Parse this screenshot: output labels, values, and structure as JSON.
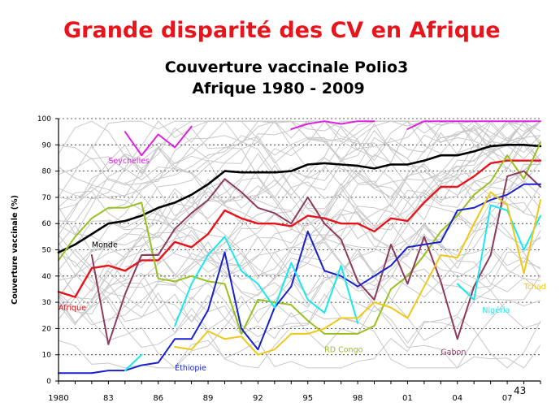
{
  "title": "Grande disparité des CV en Afrique",
  "subtitle_line1": "Couverture vaccinale Polio3",
  "subtitle_line2": "Afrique  1980 - 2009",
  "page_number": "43",
  "colors": {
    "title": "#e8141c",
    "background_lines": "#c8c8c8",
    "Monde": "#000000",
    "Afrique": "#e8141c",
    "Seychelles": "#e020e0",
    "RD Congo": "#99c01f",
    "Gabon": "#8e3a5e",
    "Éthiopie": "#1822c8",
    "Nigéria": "#18e8f0",
    "Tchad": "#f0c818"
  },
  "chart_data": {
    "type": "line",
    "title": "Couverture vaccinale Polio3 Afrique 1980 - 2009",
    "xlabel": "",
    "ylabel": "Couverture vaccinale (%)",
    "xlim": [
      1980,
      2009
    ],
    "ylim": [
      0,
      100
    ],
    "grid": "horizontal dashed",
    "x_tick_labels": [
      "1980",
      "83",
      "86",
      "89",
      "92",
      "95",
      "98",
      "01",
      "04",
      "07"
    ],
    "x_tick_values": [
      1980,
      1983,
      1986,
      1989,
      1992,
      1995,
      1998,
      2001,
      2004,
      2007
    ],
    "y_ticks": [
      0,
      10,
      20,
      30,
      40,
      50,
      60,
      70,
      80,
      90,
      100
    ],
    "x": [
      1980,
      1981,
      1982,
      1983,
      1984,
      1985,
      1986,
      1987,
      1988,
      1989,
      1990,
      1991,
      1992,
      1993,
      1994,
      1995,
      1996,
      1997,
      1998,
      1999,
      2000,
      2001,
      2002,
      2003,
      2004,
      2005,
      2006,
      2007,
      2008,
      2009
    ],
    "series": [
      {
        "name": "Monde",
        "label": "Monde",
        "label_x": 1982,
        "label_y": 51,
        "values": [
          49,
          52,
          56,
          60,
          61,
          63,
          66,
          68,
          71,
          75,
          80,
          79.5,
          79.5,
          79.5,
          80,
          82.5,
          83,
          82.5,
          82,
          81,
          82.5,
          82.5,
          84,
          86,
          86,
          87.5,
          89.5,
          90,
          90,
          89.5
        ]
      },
      {
        "name": "Afrique",
        "label": "Afrique",
        "label_x": 1980,
        "label_y": 27,
        "values": [
          34,
          32,
          43,
          44,
          42,
          46,
          46,
          53,
          51,
          56,
          65,
          62,
          60,
          60,
          59,
          63,
          62,
          60,
          60,
          57,
          62,
          61,
          68,
          74,
          74,
          78,
          83,
          84,
          84,
          84
        ]
      },
      {
        "name": "Seychelles",
        "label": "Seychelles",
        "label_x": 1983,
        "label_y": 83,
        "values": [
          null,
          null,
          null,
          null,
          95,
          86,
          94,
          89,
          97,
          null,
          null,
          null,
          null,
          null,
          96,
          98,
          99,
          98,
          99,
          99,
          null,
          96,
          99,
          99,
          99,
          99,
          99,
          99,
          99,
          99
        ]
      },
      {
        "name": "RD Congo",
        "label": "RD Congo",
        "label_x": 1996,
        "label_y": 11,
        "values": [
          46,
          55,
          62,
          66,
          66,
          68,
          39,
          38,
          40,
          38,
          37,
          18,
          31,
          30,
          29,
          23,
          18,
          18,
          18,
          21,
          35,
          40,
          48,
          57,
          63,
          71,
          76,
          86,
          77,
          91
        ]
      },
      {
        "name": "Gabon",
        "label": "Gabon",
        "label_x": 2003,
        "label_y": 10,
        "values": [
          null,
          null,
          48,
          14,
          33,
          48,
          48,
          58,
          64,
          69,
          77,
          72,
          66,
          64,
          60,
          70,
          60,
          54,
          38,
          31,
          52,
          37,
          55,
          38,
          16,
          36,
          48,
          78,
          80,
          74
        ]
      },
      {
        "name": "Éthiopie",
        "label": "Éthiopie",
        "label_x": 1987,
        "label_y": 4,
        "values": [
          3,
          3,
          3,
          4,
          4,
          6,
          7,
          16,
          16,
          27,
          49,
          20,
          12,
          28,
          36,
          57,
          42,
          40,
          36,
          40,
          44,
          51,
          52,
          53,
          65,
          66,
          69,
          71,
          75,
          75
        ]
      },
      {
        "name": "Nigéria",
        "label": "Nigéria",
        "label_x": 2005.5,
        "label_y": 26,
        "values": [
          null,
          null,
          null,
          null,
          4,
          10,
          null,
          21,
          37,
          48,
          55,
          42,
          37,
          28,
          45,
          31,
          26,
          44,
          22,
          null,
          null,
          null,
          null,
          null,
          37,
          31,
          67,
          65,
          50,
          63
        ]
      },
      {
        "name": "Tchad",
        "label": "Tchad",
        "label_x": 2008,
        "label_y": 35,
        "values": [
          null,
          null,
          null,
          null,
          null,
          null,
          null,
          13,
          12,
          19,
          16,
          17,
          10,
          12,
          18,
          18,
          20,
          24,
          24,
          30,
          28,
          24,
          36,
          48,
          47,
          60,
          72,
          67,
          41,
          69
        ]
      }
    ]
  }
}
